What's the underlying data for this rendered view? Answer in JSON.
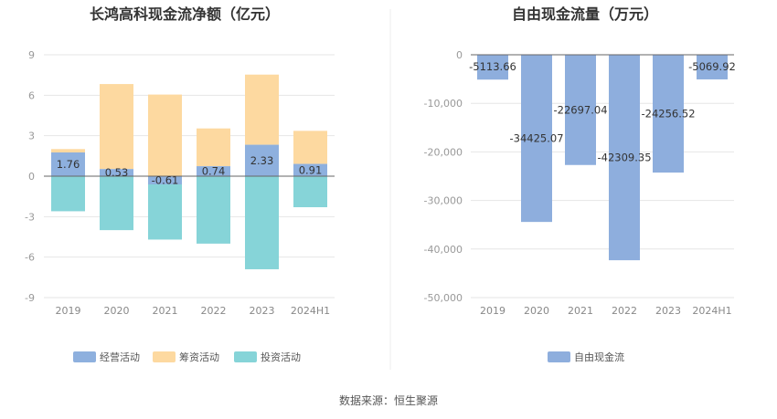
{
  "source_note": "数据来源：恒生聚源",
  "colors": {
    "operating": "#8eb0de",
    "financing": "#fdd9a0",
    "investing": "#86d4d8",
    "free_cash_flow": "#8eaedd",
    "grid": "#e6e6e6",
    "axis": "#666666",
    "divider": "#eeeeee"
  },
  "chart_data": [
    {
      "type": "bar",
      "stacked": true,
      "title": "长鸿高科现金流净额（亿元）",
      "categories": [
        "2019",
        "2020",
        "2021",
        "2022",
        "2023",
        "2024H1"
      ],
      "ylim": [
        -9,
        9
      ],
      "yticks": [
        9,
        6,
        3,
        0,
        -3,
        -6,
        -9
      ],
      "ytick_labels": [
        "9",
        "6",
        "3",
        "0",
        "-3",
        "-6",
        "-9"
      ],
      "grid": true,
      "legend_position": "bottom",
      "series": [
        {
          "key": "operating",
          "name": "经营活动",
          "values": [
            1.76,
            0.53,
            -0.61,
            0.74,
            2.33,
            0.91
          ],
          "labels": [
            "1.76",
            "0.53",
            "-0.61",
            "0.74",
            "2.33",
            "0.91"
          ]
        },
        {
          "key": "financing",
          "name": "筹资活动",
          "values": [
            0.25,
            6.3,
            6.05,
            2.8,
            5.2,
            2.45
          ]
        },
        {
          "key": "investing",
          "name": "投资活动",
          "values": [
            -2.6,
            -4.0,
            -4.7,
            -5.0,
            -6.9,
            -2.3
          ]
        }
      ]
    },
    {
      "type": "bar",
      "title": "自由现金流量（万元）",
      "categories": [
        "2019",
        "2020",
        "2021",
        "2022",
        "2023",
        "2024H1"
      ],
      "ylim": [
        -50000,
        0
      ],
      "yticks": [
        0,
        -10000,
        -20000,
        -30000,
        -40000,
        -50000
      ],
      "ytick_labels": [
        "0",
        "-10,000",
        "-20,000",
        "-30,000",
        "-40,000",
        "-50,000"
      ],
      "grid": true,
      "legend_position": "bottom",
      "series": [
        {
          "key": "free_cash_flow",
          "name": "自由现金流",
          "values": [
            -5113.66,
            -34425.07,
            -22697.04,
            -42309.35,
            -24256.52,
            -5069.92
          ],
          "labels": [
            "-5113.66",
            "-34425.07",
            "-22697.04",
            "-42309.35",
            "-24256.52",
            "-5069.92"
          ]
        }
      ]
    }
  ]
}
